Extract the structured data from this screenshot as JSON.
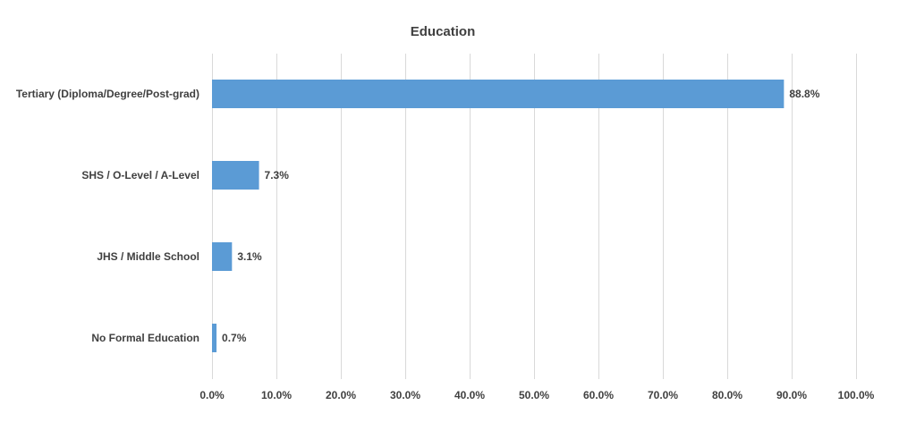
{
  "chart_data": {
    "type": "bar",
    "orientation": "horizontal",
    "title": "Education",
    "xlabel": "",
    "ylabel": "",
    "categories": [
      "Tertiary (Diploma/Degree/Post-grad)",
      "SHS / O-Level / A-Level",
      "JHS / Middle School",
      "No Formal Education"
    ],
    "values": [
      88.8,
      7.3,
      3.1,
      0.7
    ],
    "value_labels": [
      "88.8%",
      "7.3%",
      "3.1%",
      "0.7%"
    ],
    "xlim": [
      0,
      100
    ],
    "x_ticks": [
      0,
      10,
      20,
      30,
      40,
      50,
      60,
      70,
      80,
      90,
      100
    ],
    "x_tick_labels": [
      "0.0%",
      "10.0%",
      "20.0%",
      "30.0%",
      "40.0%",
      "50.0%",
      "60.0%",
      "70.0%",
      "80.0%",
      "90.0%",
      "100.0%"
    ],
    "grid": "vertical",
    "legend": "none",
    "bar_color": "#5b9bd5",
    "grid_color": "#d9d9d9",
    "text_color": "#404040"
  }
}
